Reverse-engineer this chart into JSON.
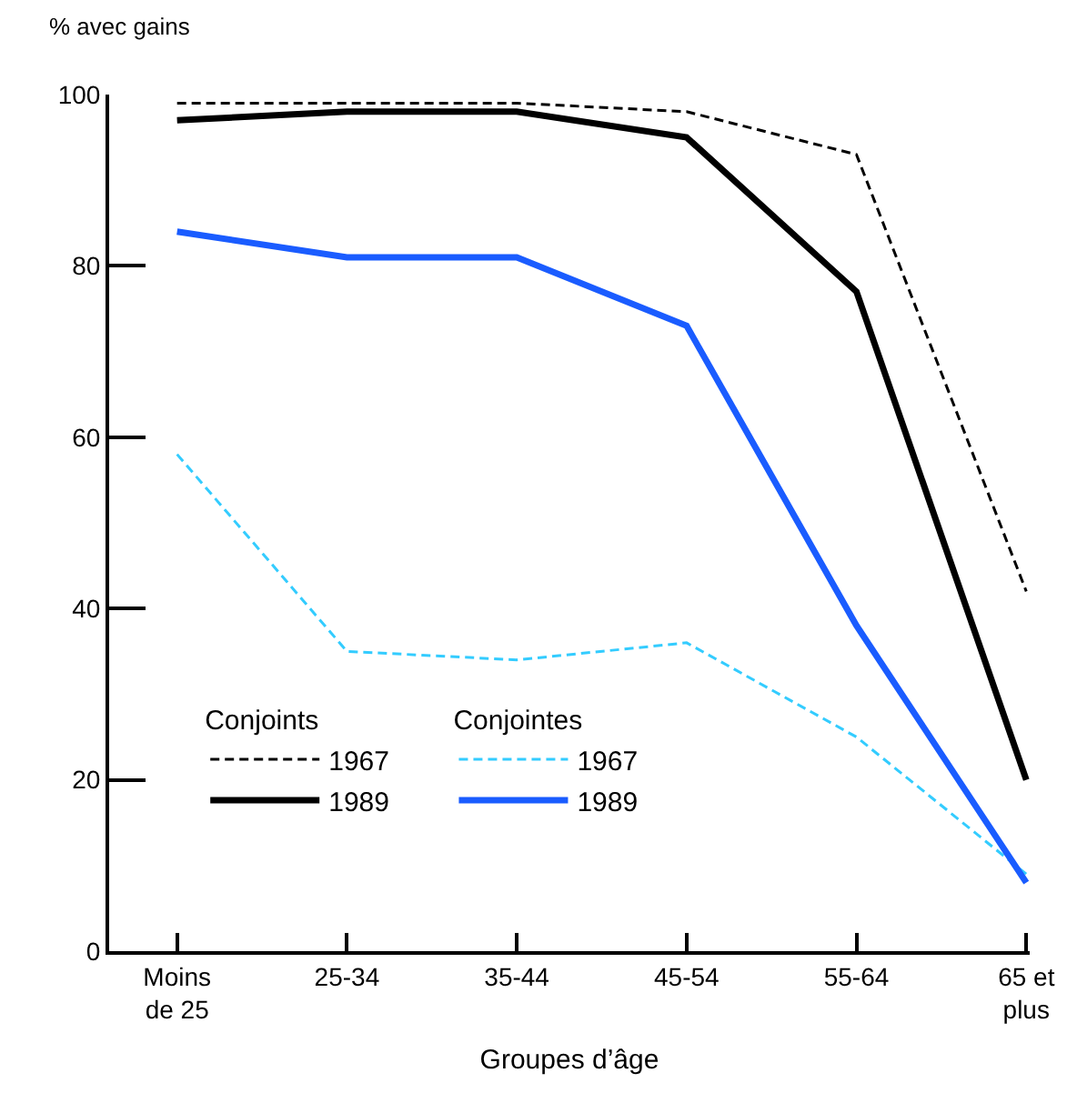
{
  "chart_data": {
    "type": "line",
    "ylabel": "% avec gains",
    "xlabel": "Groupes d’âge",
    "categories": [
      "Moins\nde 25",
      "25-34",
      "35-44",
      "45-54",
      "55-64",
      "65 et\nplus"
    ],
    "series": [
      {
        "name": "1967",
        "color": "#000000",
        "line_style": "dashed",
        "values": [
          99,
          99,
          99,
          98,
          93,
          42
        ]
      },
      {
        "name": "1989",
        "color": "#000000",
        "line_style": "solid",
        "values": [
          97,
          98,
          98,
          95,
          77,
          20
        ]
      },
      {
        "name": "1967",
        "color": "#33ccff",
        "line_style": "dashed",
        "values": [
          58,
          35,
          34,
          36,
          25,
          9
        ]
      },
      {
        "name": "1989",
        "color": "#1a5cff",
        "line_style": "solid",
        "values": [
          84,
          81,
          81,
          73,
          38,
          8
        ]
      }
    ],
    "annotations": [
      "Conjoints",
      "Conjointes"
    ],
    "ylim": [
      0,
      100
    ],
    "yticks": [
      0,
      20,
      40,
      60,
      80,
      100
    ],
    "grid": false,
    "marker": "none",
    "legend": "bottom left"
  }
}
